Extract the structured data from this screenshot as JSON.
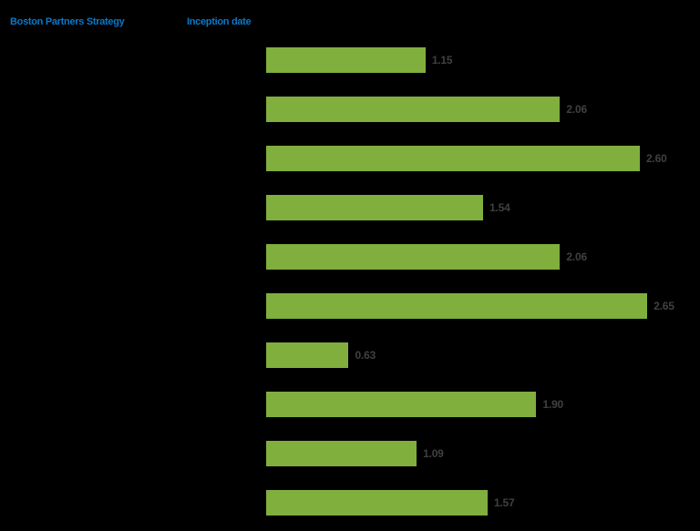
{
  "header": {
    "strategy_label": "Boston Partners Strategy",
    "inception_label": "Inception date"
  },
  "colors": {
    "header_text": "#0a78c8",
    "bar": "#80af3e",
    "value_label": "#404040",
    "background": "#000000"
  },
  "chart_data": {
    "type": "bar",
    "orientation": "horizontal",
    "title": "",
    "xlabel": "",
    "ylabel": "",
    "column_headers": [
      "Boston Partners Strategy",
      "Inception date"
    ],
    "categories": [
      "",
      "",
      "",
      "",
      "",
      "",
      "",
      "",
      "",
      ""
    ],
    "values": [
      1.15,
      2.06,
      2.6,
      1.54,
      2.06,
      2.65,
      0.63,
      1.9,
      1.09,
      1.57
    ],
    "value_labels": [
      "1.15",
      "2.06",
      "2.60",
      "1.54",
      "2.06",
      "2.65",
      "0.63",
      "1.90",
      "1.09",
      "1.57"
    ],
    "xlim": [
      0,
      2.8
    ],
    "grid": false,
    "legend": null,
    "data_labels": true
  }
}
